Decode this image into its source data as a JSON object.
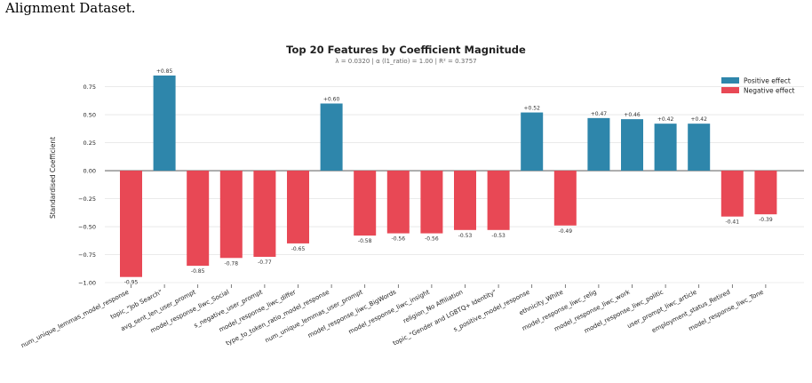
{
  "page_caption": "Alignment Dataset.",
  "chart_data": {
    "type": "bar",
    "title": "Top 20 Features by Coefficient Magnitude",
    "subtitle": "λ = 0.0320   |   α (l1_ratio) = 1.00   |   R² = 0.3757",
    "ylabel": "Standardised Coefficient",
    "xlabel": "",
    "ylim": [
      -1.0,
      0.85
    ],
    "yticks": [
      -1.0,
      -0.75,
      -0.5,
      -0.25,
      0.0,
      0.25,
      0.5,
      0.75
    ],
    "ytick_labels": [
      "−1.00",
      "−0.75",
      "−0.50",
      "−0.25",
      "0.00",
      "0.25",
      "0.50",
      "0.75"
    ],
    "grid": true,
    "legend_position": "top-right",
    "legend": [
      {
        "label": "Positive effect",
        "color": "#2e86ab"
      },
      {
        "label": "Negative effect",
        "color": "#e84855"
      }
    ],
    "colors": {
      "positive": "#2e86ab",
      "negative": "#e84855"
    },
    "categories": [
      "num_unique_lemmas_model_response",
      "topic_\"Job Search\"",
      "avg_sent_len_user_prompt",
      "model_response_liwc_Social",
      "s_negative_user_prompt",
      "model_response_liwc_differ",
      "type_to_token_ratio_model_response",
      "num_unique_lemmas_user_prompt",
      "model_response_liwc_BigWords",
      "model_response_liwc_insight",
      "religion_No Affiliation",
      "topic_\"Gender and LGBTQ+ Identity\"",
      "s_positive_model_response",
      "ethnicity_White",
      "model_response_liwc_relig",
      "model_response_liwc_work",
      "model_response_liwc_politic",
      "user_prompt_liwc_article",
      "employment_status_Retired",
      "model_response_liwc_Tone"
    ],
    "values": [
      -0.95,
      0.85,
      -0.85,
      -0.78,
      -0.77,
      -0.65,
      0.6,
      -0.58,
      -0.56,
      -0.56,
      -0.53,
      -0.53,
      0.52,
      -0.49,
      0.47,
      0.46,
      0.42,
      0.42,
      -0.41,
      -0.39
    ],
    "data_labels": [
      "-0.95",
      "+0.85",
      "-0.85",
      "-0.78",
      "-0.77",
      "-0.65",
      "+0.60",
      "-0.58",
      "-0.56",
      "-0.56",
      "-0.53",
      "-0.53",
      "+0.52",
      "-0.49",
      "+0.47",
      "+0.46",
      "+0.42",
      "+0.42",
      "-0.41",
      "-0.39"
    ]
  }
}
